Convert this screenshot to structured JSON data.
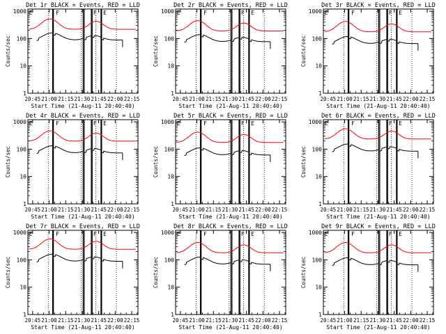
{
  "chart_data": {
    "type": "line",
    "shared": {
      "xlabel": "Start Time (21-Aug-11 20:40:40)",
      "ylabel": "Counts/sec",
      "x_tick_labels": [
        "20:45",
        "21:00",
        "21:15",
        "21:30",
        "21:45",
        "22:00",
        "22:15"
      ],
      "y_tick_labels": [
        "1",
        "10",
        "100",
        "1000"
      ],
      "x_range_minutes_after_20_40_40": [
        0,
        100
      ],
      "ylim": [
        1,
        1200
      ],
      "y_scale": "log",
      "flag_labels": [
        "E",
        "F",
        "F",
        "E"
      ],
      "series_colors": {
        "events": "#000000",
        "lld": "#ff0000"
      }
    },
    "panels": [
      {
        "title": "Det 1r BLACK = Events, RED = LLD",
        "event_peak": 230,
        "lld_peak": 520
      },
      {
        "title": "Det 2r BLACK = Events, RED = LLD",
        "event_peak": 200,
        "lld_peak": 450
      },
      {
        "title": "Det 3r BLACK = Events, RED = LLD",
        "event_peak": 170,
        "lld_peak": 420
      },
      {
        "title": "Det 4r BLACK = Events, RED = LLD",
        "event_peak": 190,
        "lld_peak": 470
      },
      {
        "title": "Det 5r BLACK = Events, RED = LLD",
        "event_peak": 160,
        "lld_peak": 420
      },
      {
        "title": "Det 6r BLACK = Events, RED = LLD",
        "event_peak": 220,
        "lld_peak": 560
      },
      {
        "title": "Det 7r BLACK = Events, RED = LLD",
        "event_peak": 230,
        "lld_peak": 580
      },
      {
        "title": "Det 8r BLACK = Events, RED = LLD",
        "event_peak": 180,
        "lld_peak": 430
      },
      {
        "title": "Det 9r BLACK = Events, RED = LLD",
        "event_peak": 170,
        "lld_peak": 430
      }
    ]
  }
}
